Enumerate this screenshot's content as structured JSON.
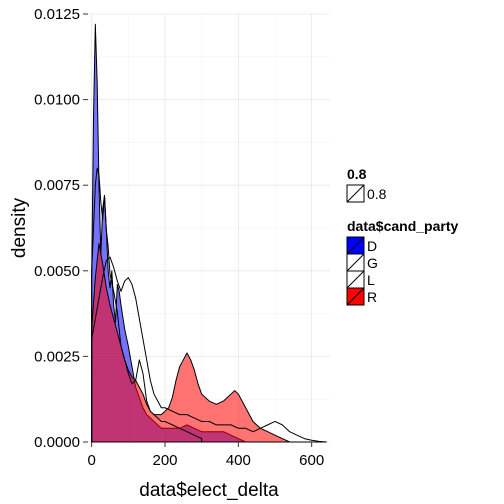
{
  "chart_data": {
    "type": "area",
    "title": "",
    "xlabel": "data$elect_delta",
    "ylabel": "density",
    "xlim": [
      -10,
      650
    ],
    "ylim": [
      0,
      0.0125
    ],
    "x_ticks": [
      0,
      200,
      400,
      600
    ],
    "x_tick_labels": [
      "0",
      "200",
      "400",
      "600"
    ],
    "y_ticks": [
      0,
      0.0025,
      0.005,
      0.0075,
      0.01,
      0.0125
    ],
    "y_tick_labels": [
      "0.0000",
      "0.0025",
      "0.0050",
      "0.0075",
      "0.0100",
      "0.0125"
    ],
    "grid": true,
    "legend_position": "right",
    "legends": [
      {
        "title": "0.8",
        "entries": [
          {
            "label": "0.8",
            "fill": "none"
          }
        ]
      },
      {
        "title": "data$cand_party",
        "entries": [
          {
            "label": "D",
            "fill": "#0000ff"
          },
          {
            "label": "G",
            "fill": "none"
          },
          {
            "label": "L",
            "fill": "none"
          },
          {
            "label": "R",
            "fill": "#ff0000"
          }
        ]
      }
    ],
    "series": [
      {
        "name": "D",
        "fill": "#0000ff",
        "fill_opacity": 0.55,
        "x": [
          0,
          5,
          10,
          15,
          20,
          25,
          30,
          35,
          40,
          45,
          50,
          55,
          60,
          65,
          70,
          75,
          80,
          90,
          100,
          110,
          120,
          130,
          140,
          150,
          160,
          170,
          180,
          190,
          200,
          220,
          240,
          260,
          280,
          300,
          320,
          340,
          360,
          380,
          400,
          420
        ],
        "y": [
          0.0048,
          0.0095,
          0.0122,
          0.0105,
          0.0075,
          0.0055,
          0.0068,
          0.0072,
          0.0062,
          0.005,
          0.0045,
          0.005,
          0.004,
          0.0035,
          0.0046,
          0.0044,
          0.004,
          0.0033,
          0.0028,
          0.0022,
          0.0016,
          0.0013,
          0.001,
          0.0008,
          0.0007,
          0.0006,
          0.0005,
          0.0004,
          0.0004,
          0.0004,
          0.0004,
          0.0005,
          0.0004,
          0.0003,
          0.0003,
          0.0003,
          0.0003,
          0.0002,
          0.0001,
          0.0
        ]
      },
      {
        "name": "R",
        "fill": "#ff0000",
        "fill_opacity": 0.55,
        "x": [
          0,
          10,
          20,
          30,
          40,
          50,
          60,
          70,
          80,
          90,
          100,
          110,
          120,
          130,
          140,
          150,
          160,
          170,
          180,
          190,
          200,
          210,
          220,
          230,
          240,
          250,
          260,
          270,
          280,
          290,
          300,
          320,
          340,
          360,
          380,
          390,
          400,
          420,
          440,
          460,
          480,
          500,
          520,
          540
        ],
        "y": [
          0.0033,
          0.0048,
          0.0058,
          0.0052,
          0.0045,
          0.004,
          0.0036,
          0.0032,
          0.0028,
          0.0024,
          0.0021,
          0.0019,
          0.0018,
          0.0016,
          0.0014,
          0.0011,
          0.0009,
          0.0008,
          0.0008,
          0.0008,
          0.0009,
          0.001,
          0.0013,
          0.0018,
          0.0022,
          0.0024,
          0.0026,
          0.0024,
          0.0021,
          0.0017,
          0.0014,
          0.0012,
          0.0011,
          0.0012,
          0.0014,
          0.0015,
          0.0014,
          0.001,
          0.0006,
          0.0004,
          0.0003,
          0.0002,
          0.0001,
          0.0
        ]
      },
      {
        "name": "G",
        "fill": "none",
        "fill_opacity": 0,
        "x": [
          0,
          5,
          10,
          15,
          20,
          25,
          30,
          35,
          40,
          45,
          50,
          60,
          70,
          80,
          90,
          100,
          110,
          120,
          130,
          140,
          150,
          160,
          170,
          180,
          190,
          200,
          220,
          240,
          260,
          280,
          300
        ],
        "y": [
          0.005,
          0.0062,
          0.0075,
          0.008,
          0.0078,
          0.007,
          0.0065,
          0.0072,
          0.0062,
          0.0057,
          0.0049,
          0.0044,
          0.0038,
          0.0028,
          0.0024,
          0.002,
          0.0017,
          0.0018,
          0.0024,
          0.002,
          0.0012,
          0.0009,
          0.0008,
          0.0007,
          0.0006,
          0.0006,
          0.0005,
          0.0004,
          0.0003,
          0.0002,
          0.0001
        ]
      },
      {
        "name": "L",
        "fill": "none",
        "fill_opacity": 0,
        "x": [
          0,
          10,
          20,
          30,
          40,
          50,
          60,
          70,
          80,
          90,
          100,
          110,
          120,
          130,
          140,
          150,
          160,
          170,
          180,
          190,
          200,
          220,
          240,
          260,
          280,
          300,
          320,
          340,
          360,
          380,
          400,
          420,
          440,
          460,
          480,
          500,
          520,
          540,
          560,
          580,
          600,
          620,
          640
        ],
        "y": [
          0.003,
          0.0036,
          0.0042,
          0.0048,
          0.0053,
          0.0054,
          0.0051,
          0.0047,
          0.0044,
          0.0047,
          0.0048,
          0.0046,
          0.0042,
          0.0036,
          0.003,
          0.0024,
          0.0018,
          0.0014,
          0.0012,
          0.001,
          0.001,
          0.0009,
          0.0008,
          0.0008,
          0.0007,
          0.0006,
          0.0006,
          0.0005,
          0.0005,
          0.0005,
          0.0004,
          0.0004,
          0.0003,
          0.0004,
          0.0005,
          0.0006,
          0.0005,
          0.0003,
          0.0002,
          0.0001,
          5e-05,
          2e-05,
          0.0
        ]
      }
    ]
  }
}
